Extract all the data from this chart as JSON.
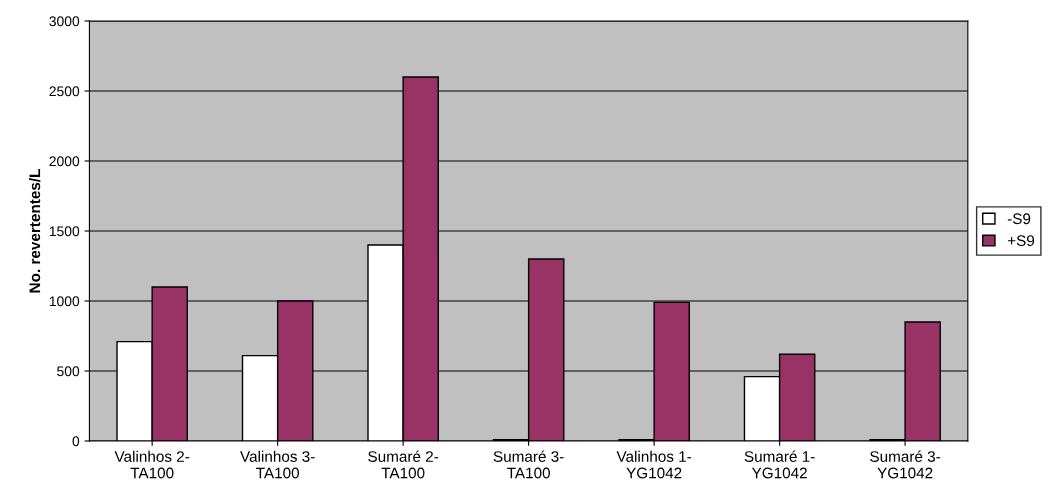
{
  "chart_data": {
    "type": "bar",
    "ylabel": "No. revertentes/L",
    "categories": [
      "Valinhos 2-\nTA100",
      "Valinhos 3-\nTA100",
      "Sumaré 2-\nTA100",
      "Sumaré 3-\nTA100",
      "Valinhos 1-\nYG1042",
      "Sumaré 1-\nYG1042",
      "Sumaré 3-\nYG1042"
    ],
    "series": [
      {
        "name": "-S9",
        "color": "#ffffff",
        "values": [
          710,
          610,
          1400,
          10,
          10,
          460,
          10
        ]
      },
      {
        "name": "+S9",
        "color": "#993366",
        "values": [
          1100,
          1000,
          2600,
          1300,
          990,
          620,
          850
        ]
      }
    ],
    "ylim": [
      0,
      3000
    ],
    "yticks": [
      0,
      500,
      1000,
      1500,
      2000,
      2500,
      3000
    ],
    "grid": "y",
    "legend": "right"
  }
}
